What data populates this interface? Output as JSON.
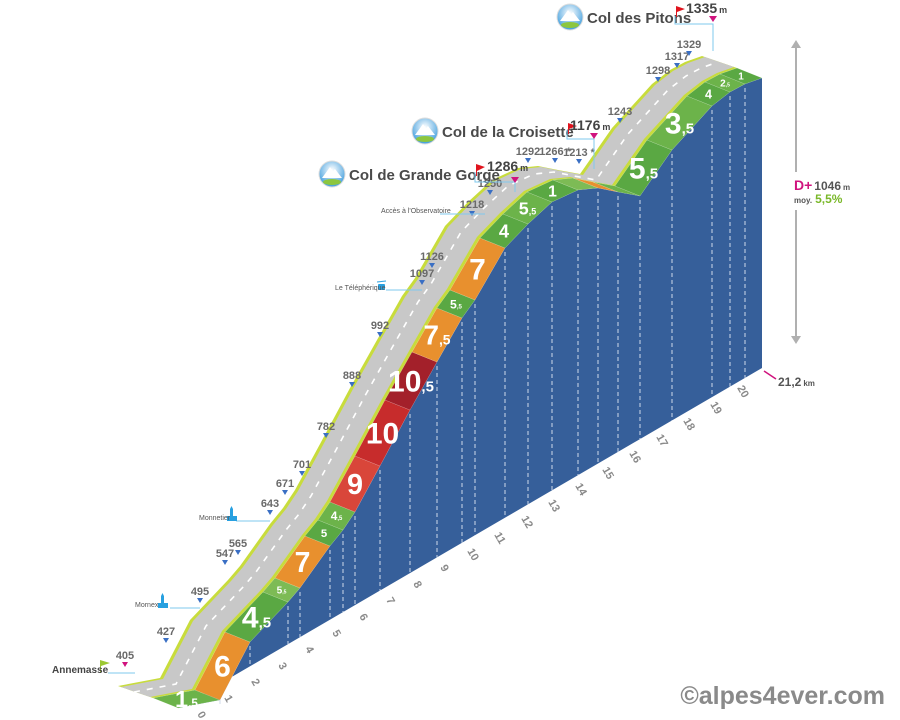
{
  "chart_data": {
    "type": "area",
    "title": "",
    "x_unit": "km",
    "y_unit": "m",
    "x_ticks": [
      "0",
      "1",
      "2",
      "3",
      "4",
      "5",
      "6",
      "7",
      "8",
      "9",
      "10",
      "11",
      "12",
      "13",
      "14",
      "15",
      "16",
      "17",
      "18",
      "19",
      "20"
    ],
    "total_distance": "21,2",
    "total_distance_unit": "km",
    "elevation_gain_label": "D+",
    "elevation_gain": "1046",
    "elevation_gain_unit": "m",
    "average_label": "moy.",
    "average_gradient": "5,5%",
    "gradient_segments": [
      {
        "gradient": "1.5",
        "color": "#6cb34a"
      },
      {
        "gradient": "6",
        "color": "#e8902e"
      },
      {
        "gradient": "4.5",
        "color": "#5aa843"
      },
      {
        "gradient": "5.5",
        "color": "#7dbb55"
      },
      {
        "gradient": "7",
        "color": "#e8902e"
      },
      {
        "gradient": "5",
        "color": "#5aa843"
      },
      {
        "gradient": "4.5",
        "color": "#6cb34a"
      },
      {
        "gradient": "9",
        "color": "#d9463a"
      },
      {
        "gradient": "10",
        "color": "#c72c2c"
      },
      {
        "gradient": "10.5",
        "color": "#a3202a"
      },
      {
        "gradient": "7.5",
        "color": "#e8902e"
      },
      {
        "gradient": "5.5",
        "color": "#5aa843"
      },
      {
        "gradient": "7",
        "color": "#e8902e"
      },
      {
        "gradient": "4",
        "color": "#5aa843"
      },
      {
        "gradient": "5.5",
        "color": "#6cb34a"
      },
      {
        "gradient": "1",
        "color": "#5aa843"
      },
      {
        "gradient": "",
        "color": "#7dbb55"
      },
      {
        "gradient": "",
        "color": "#e8902e"
      },
      {
        "gradient": "",
        "color": "#6cb34a"
      },
      {
        "gradient": "5.5",
        "color": "#5aa843"
      },
      {
        "gradient": "3.5",
        "color": "#6cb34a"
      },
      {
        "gradient": "4",
        "color": "#5aa843"
      },
      {
        "gradient": "2.5",
        "color": "#6cb34a"
      },
      {
        "gradient": "1",
        "color": "#5aa843"
      }
    ],
    "altitude_markers": [
      "405",
      "427",
      "495",
      "547",
      "565",
      "643",
      "671",
      "701",
      "782",
      "888",
      "992",
      "1097",
      "1126",
      "1218",
      "1250",
      "1292",
      "1266 *",
      "1213 *",
      "1243",
      "1298",
      "1317",
      "1329"
    ],
    "places": [
      {
        "name": "Annemasse",
        "altitude": "405",
        "icon": "start-flag-icon"
      },
      {
        "name": "Mornex",
        "altitude": "495",
        "icon": "church-icon"
      },
      {
        "name": "Monnetier",
        "altitude": "643",
        "icon": "church-icon"
      },
      {
        "name": "Le Téléphérique",
        "altitude": "1097",
        "icon": "cable-car-icon"
      },
      {
        "name": "Accès à l'Observatoire",
        "altitude": "1218",
        "icon": ""
      }
    ],
    "passes": [
      {
        "name": "Col de Grande Gorge",
        "altitude": "1286",
        "unit": "m"
      },
      {
        "name": "Col de la Croisette",
        "altitude": "1176",
        "unit": "m"
      },
      {
        "name": "Col des Pitons",
        "altitude": "1335",
        "unit": "m"
      }
    ],
    "colors": {
      "wall": "#365f9a",
      "road": "#c8c8c8",
      "road_edge": "#c8dc3c",
      "summit_marker": "#d0137e",
      "marker": "#3a6fc4"
    }
  },
  "copyright": "©alpes4ever.com"
}
